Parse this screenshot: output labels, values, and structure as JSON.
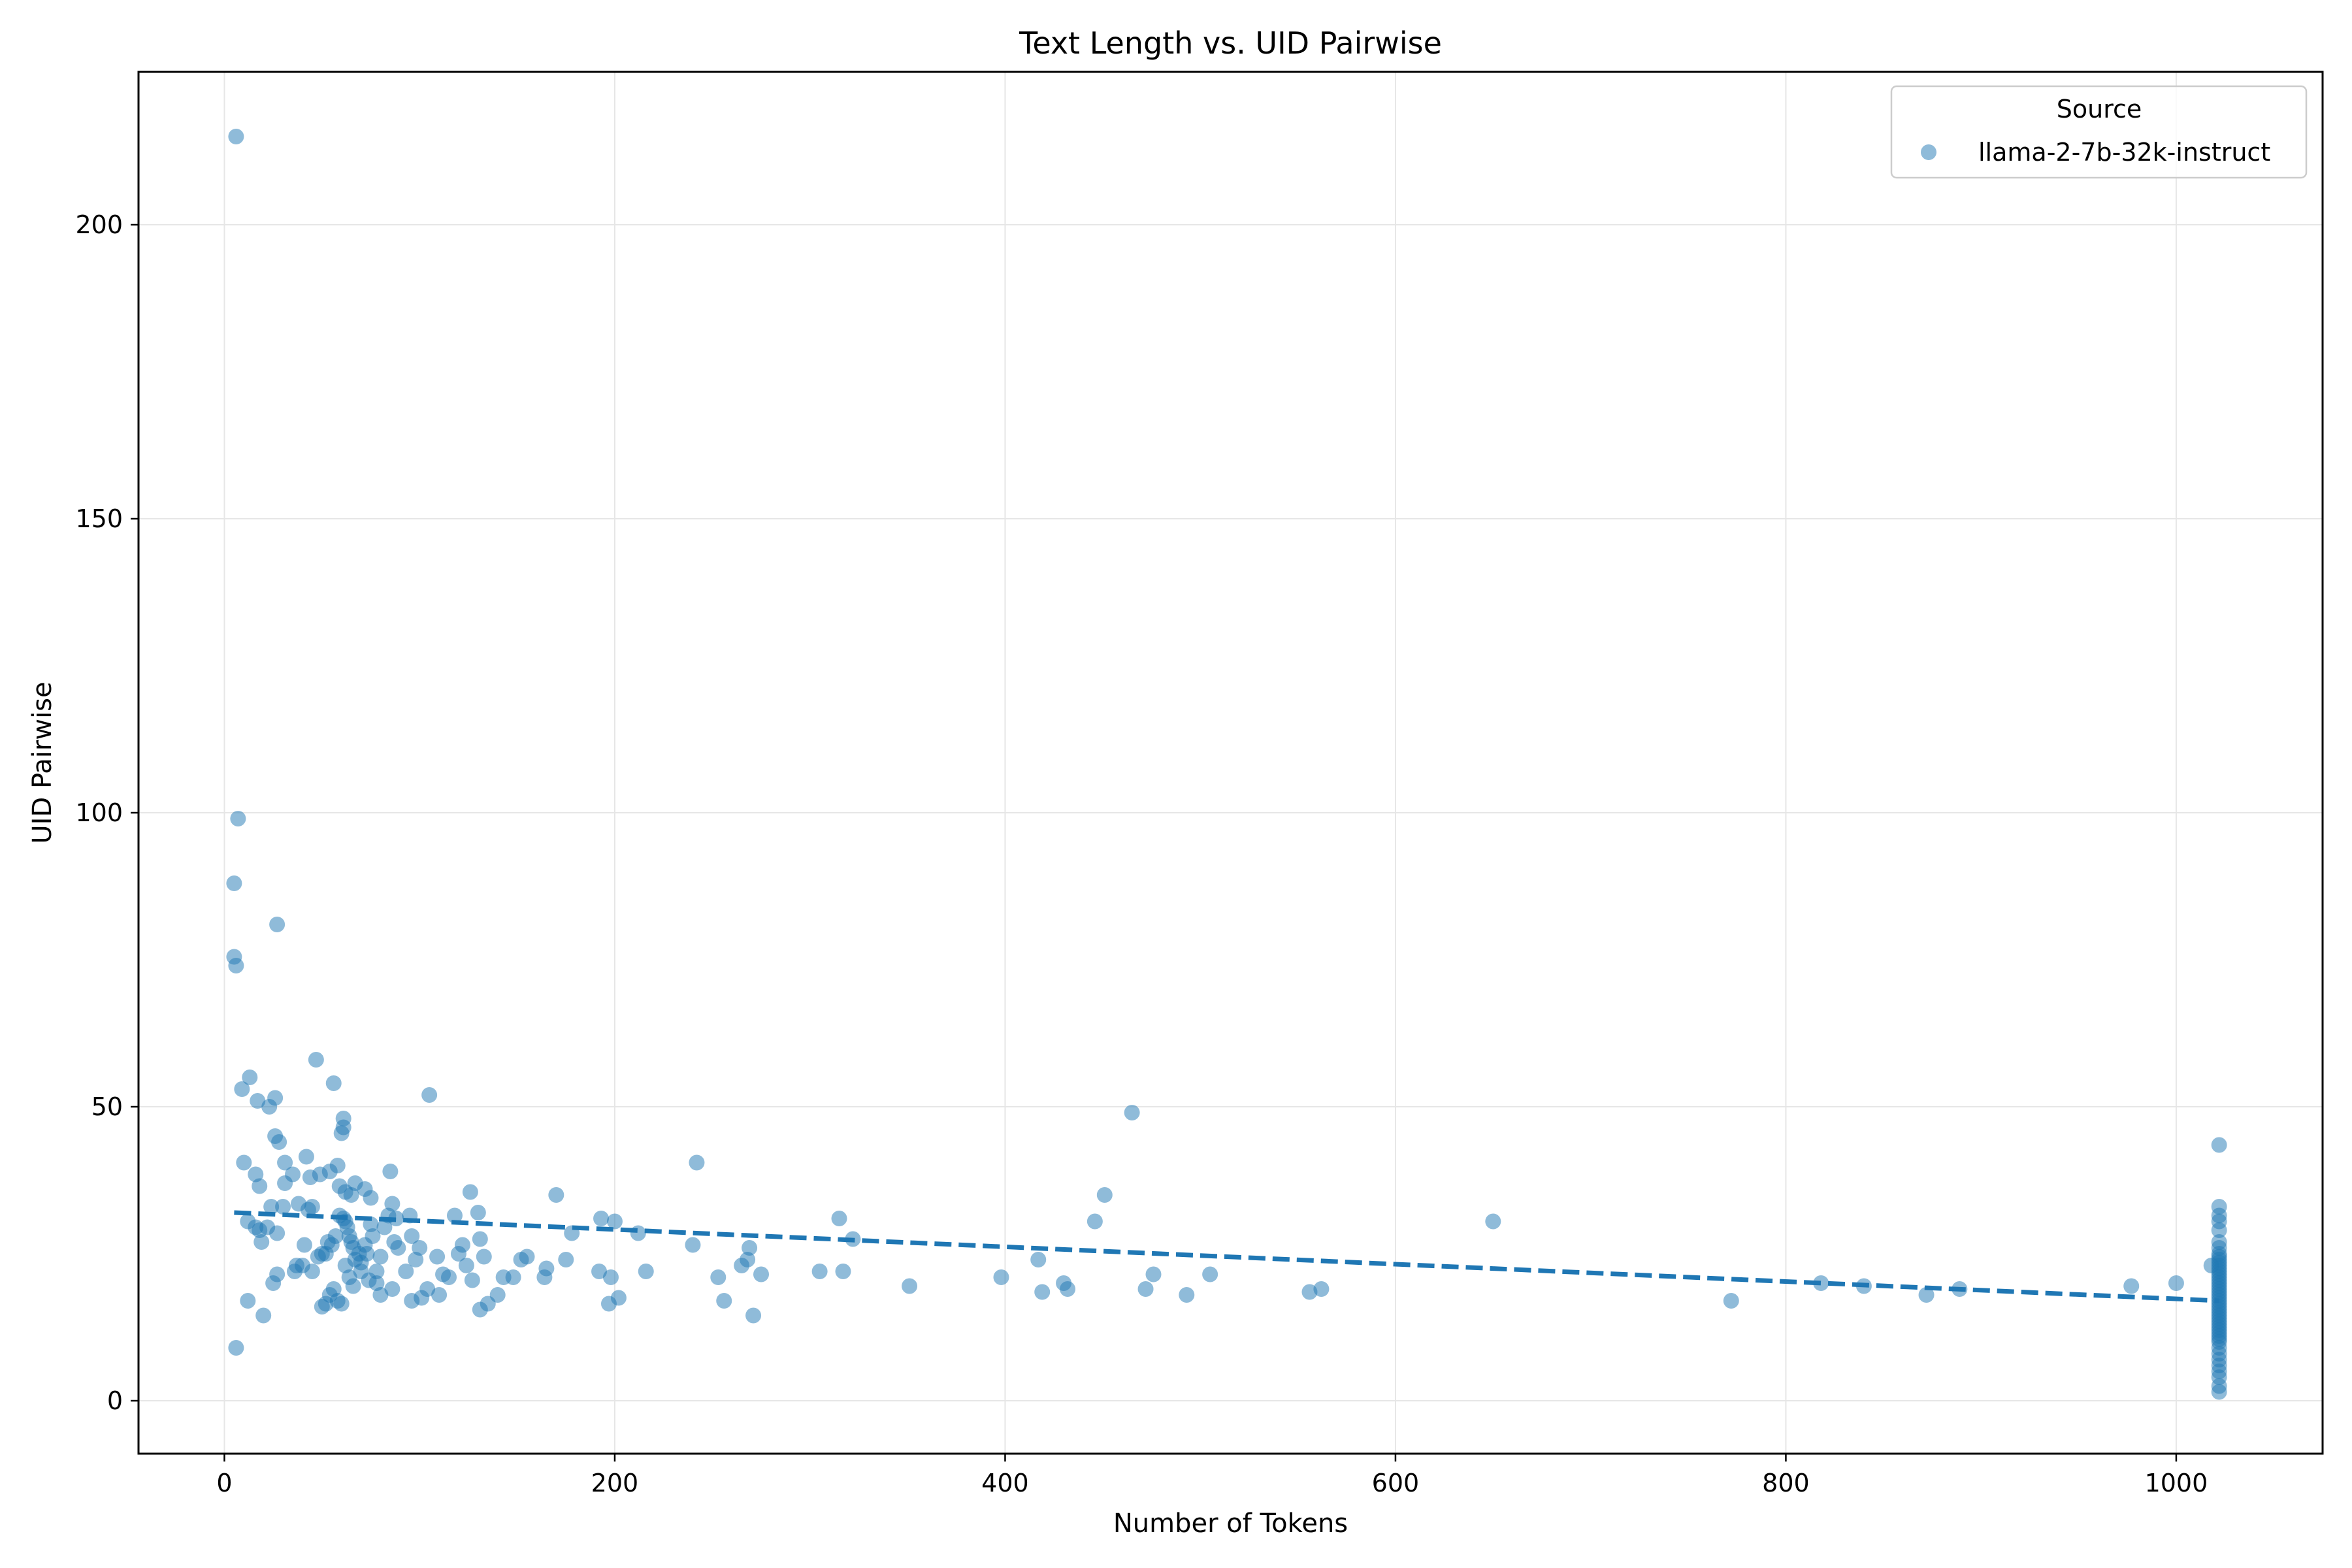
{
  "chart_data": {
    "type": "scatter",
    "title": "Text Length vs. UID Pairwise",
    "xlabel": "Number of Tokens",
    "ylabel": "UID Pairwise",
    "xlim": [
      -44,
      1075
    ],
    "ylim": [
      -9,
      226
    ],
    "xticks": [
      0,
      200,
      400,
      600,
      800,
      1000
    ],
    "yticks": [
      0,
      50,
      100,
      150,
      200
    ],
    "grid": true,
    "legend": {
      "title": "Source",
      "placement": "top-right"
    },
    "colors": {
      "points": "#1f77b4",
      "trend": "#1f77b4"
    },
    "series": [
      {
        "name": "llama-2-7b-32k-instruct",
        "points": [
          [
            6,
            215
          ],
          [
            7,
            99
          ],
          [
            5,
            88
          ],
          [
            5,
            75.5
          ],
          [
            6,
            74
          ],
          [
            27,
            81
          ],
          [
            9,
            53
          ],
          [
            13,
            55
          ],
          [
            17,
            51
          ],
          [
            23,
            50
          ],
          [
            26,
            51.5
          ],
          [
            26,
            45
          ],
          [
            28,
            44
          ],
          [
            10,
            40.5
          ],
          [
            16,
            38.5
          ],
          [
            18,
            36.5
          ],
          [
            31,
            40.5
          ],
          [
            31,
            37
          ],
          [
            35,
            38.5
          ],
          [
            42,
            41.5
          ],
          [
            44,
            38
          ],
          [
            47,
            58
          ],
          [
            56,
            54
          ],
          [
            61,
            48
          ],
          [
            61,
            46.5
          ],
          [
            60,
            45.5
          ],
          [
            49,
            38.5
          ],
          [
            54,
            39
          ],
          [
            58,
            40
          ],
          [
            59,
            36.5
          ],
          [
            62,
            35.5
          ],
          [
            65,
            35
          ],
          [
            67,
            37
          ],
          [
            72,
            36
          ],
          [
            75,
            34.5
          ],
          [
            85,
            39
          ],
          [
            86,
            33.5
          ],
          [
            88,
            31
          ],
          [
            95,
            31.5
          ],
          [
            105,
            52
          ],
          [
            12,
            30.5
          ],
          [
            16,
            29.5
          ],
          [
            18,
            29
          ],
          [
            19,
            27
          ],
          [
            22,
            29.5
          ],
          [
            24,
            33
          ],
          [
            27,
            28.5
          ],
          [
            30,
            33
          ],
          [
            36,
            22
          ],
          [
            38,
            33.5
          ],
          [
            41,
            26.5
          ],
          [
            43,
            32.5
          ],
          [
            45,
            33
          ],
          [
            48,
            24.5
          ],
          [
            50,
            25
          ],
          [
            52,
            25
          ],
          [
            53,
            27
          ],
          [
            55,
            26.5
          ],
          [
            57,
            28
          ],
          [
            59,
            31.5
          ],
          [
            61,
            31
          ],
          [
            62,
            30.5
          ],
          [
            63,
            29.5
          ],
          [
            64,
            28
          ],
          [
            65,
            27
          ],
          [
            66,
            26
          ],
          [
            67,
            24
          ],
          [
            69,
            25
          ],
          [
            70,
            23.5
          ],
          [
            72,
            26.5
          ],
          [
            73,
            25
          ],
          [
            75,
            30
          ],
          [
            76,
            28
          ],
          [
            78,
            22
          ],
          [
            80,
            24.5
          ],
          [
            82,
            29.5
          ],
          [
            84,
            31.5
          ],
          [
            87,
            27
          ],
          [
            89,
            26
          ],
          [
            93,
            22
          ],
          [
            96,
            28
          ],
          [
            98,
            24
          ],
          [
            100,
            26
          ],
          [
            104,
            19
          ],
          [
            109,
            24.5
          ],
          [
            112,
            21.5
          ],
          [
            115,
            21
          ],
          [
            118,
            31.5
          ],
          [
            120,
            25
          ],
          [
            122,
            26.5
          ],
          [
            124,
            23
          ],
          [
            126,
            35.5
          ],
          [
            127,
            20.5
          ],
          [
            130,
            32
          ],
          [
            131,
            27.5
          ],
          [
            133,
            24.5
          ],
          [
            135,
            16.5
          ],
          [
            140,
            18
          ],
          [
            143,
            21
          ],
          [
            148,
            21
          ],
          [
            152,
            24
          ],
          [
            155,
            24.5
          ],
          [
            164,
            21
          ],
          [
            165,
            22.5
          ],
          [
            170,
            35
          ],
          [
            175,
            24
          ],
          [
            178,
            28.5
          ],
          [
            192,
            22
          ],
          [
            193,
            31
          ],
          [
            197,
            16.5
          ],
          [
            198,
            21
          ],
          [
            200,
            30.5
          ],
          [
            202,
            17.5
          ],
          [
            212,
            28.5
          ],
          [
            216,
            22
          ],
          [
            240,
            26.5
          ],
          [
            242,
            40.5
          ],
          [
            253,
            21
          ],
          [
            256,
            17
          ],
          [
            265,
            23
          ],
          [
            268,
            24
          ],
          [
            269,
            26
          ],
          [
            271,
            14.5
          ],
          [
            275,
            21.5
          ],
          [
            305,
            22
          ],
          [
            315,
            31
          ],
          [
            317,
            22
          ],
          [
            322,
            27.5
          ],
          [
            351,
            19.5
          ],
          [
            398,
            21
          ],
          [
            417,
            24
          ],
          [
            419,
            18.5
          ],
          [
            430,
            20
          ],
          [
            432,
            19
          ],
          [
            446,
            30.5
          ],
          [
            451,
            35
          ],
          [
            465,
            49
          ],
          [
            472,
            19
          ],
          [
            476,
            21.5
          ],
          [
            493,
            18
          ],
          [
            505,
            21.5
          ],
          [
            556,
            18.5
          ],
          [
            562,
            19
          ],
          [
            650,
            30.5
          ],
          [
            772,
            17
          ],
          [
            818,
            20
          ],
          [
            840,
            19.5
          ],
          [
            872,
            18
          ],
          [
            889,
            19
          ],
          [
            977,
            19.5
          ],
          [
            1000,
            20
          ],
          [
            1018,
            23
          ],
          [
            6,
            9
          ],
          [
            12,
            17
          ],
          [
            20,
            14.5
          ],
          [
            25,
            20
          ],
          [
            27,
            21.5
          ],
          [
            37,
            23
          ],
          [
            40,
            23
          ],
          [
            45,
            22
          ],
          [
            50,
            16
          ],
          [
            52,
            16.5
          ],
          [
            54,
            18
          ],
          [
            56,
            19
          ],
          [
            58,
            17
          ],
          [
            60,
            16.5
          ],
          [
            62,
            23
          ],
          [
            64,
            21
          ],
          [
            66,
            19.5
          ],
          [
            70,
            22
          ],
          [
            74,
            20.5
          ],
          [
            78,
            20
          ],
          [
            80,
            18
          ],
          [
            86,
            19
          ],
          [
            96,
            17
          ],
          [
            101,
            17.5
          ],
          [
            110,
            18
          ],
          [
            131,
            15.5
          ],
          [
            1022,
            43.5
          ],
          [
            1022,
            33
          ],
          [
            1022,
            31.5
          ],
          [
            1022,
            30.5
          ],
          [
            1022,
            29
          ],
          [
            1022,
            27
          ],
          [
            1022,
            26
          ],
          [
            1022,
            25
          ],
          [
            1022,
            24.5
          ],
          [
            1022,
            24
          ],
          [
            1022,
            23.5
          ],
          [
            1022,
            23
          ],
          [
            1022,
            22.5
          ],
          [
            1022,
            22
          ],
          [
            1022,
            21.5
          ],
          [
            1022,
            21
          ],
          [
            1022,
            20.5
          ],
          [
            1022,
            20
          ],
          [
            1022,
            19.5
          ],
          [
            1022,
            19
          ],
          [
            1022,
            18.5
          ],
          [
            1022,
            18
          ],
          [
            1022,
            17.5
          ],
          [
            1022,
            17
          ],
          [
            1022,
            16.5
          ],
          [
            1022,
            16
          ],
          [
            1022,
            15.5
          ],
          [
            1022,
            15
          ],
          [
            1022,
            14.5
          ],
          [
            1022,
            14
          ],
          [
            1022,
            13.5
          ],
          [
            1022,
            13
          ],
          [
            1022,
            12.5
          ],
          [
            1022,
            12
          ],
          [
            1022,
            11.5
          ],
          [
            1022,
            11
          ],
          [
            1022,
            10.5
          ],
          [
            1022,
            10
          ],
          [
            1022,
            9
          ],
          [
            1022,
            8
          ],
          [
            1022,
            7
          ],
          [
            1022,
            6
          ],
          [
            1022,
            5
          ],
          [
            1022,
            4
          ],
          [
            1022,
            2.5
          ],
          [
            1022,
            1.5
          ]
        ]
      }
    ],
    "trendline": {
      "x": [
        5,
        1022
      ],
      "y": [
        32,
        17
      ]
    }
  }
}
